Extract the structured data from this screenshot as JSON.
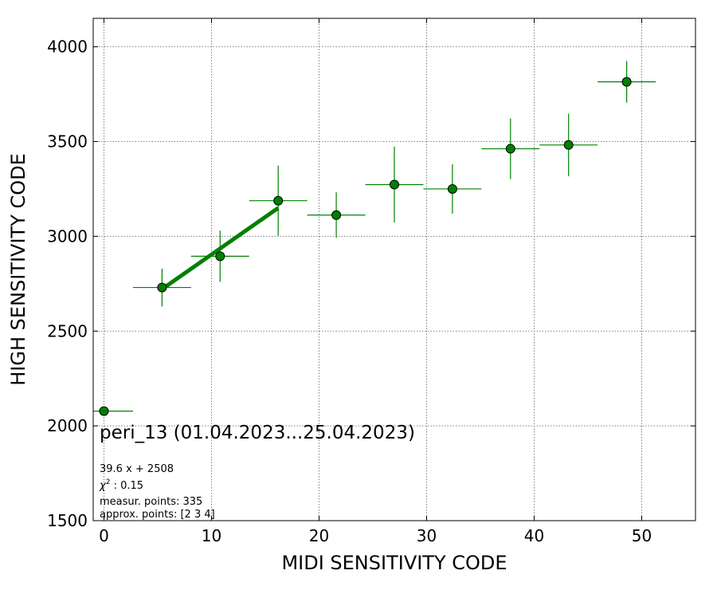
{
  "chart_data": {
    "type": "scatter",
    "xlabel": "MIDI SENSITIVITY CODE",
    "ylabel": "HIGH SENSITIVITY CODE",
    "xlim": [
      -1,
      55
    ],
    "ylim": [
      1500,
      4150
    ],
    "xticks": [
      0,
      10,
      20,
      30,
      40,
      50
    ],
    "yticks": [
      1500,
      2000,
      2500,
      3000,
      3500,
      4000
    ],
    "grid": true,
    "marker_color": "#008000",
    "errorbar_color": "#008000",
    "fit_color": "#008000",
    "points": [
      {
        "x": 0.0,
        "y": 2078,
        "xerr": 2.7,
        "yerr": 0
      },
      {
        "x": 5.4,
        "y": 2730,
        "xerr": 2.7,
        "yerr": 100
      },
      {
        "x": 10.8,
        "y": 2895,
        "xerr": 2.7,
        "yerr": 135
      },
      {
        "x": 16.2,
        "y": 3188,
        "xerr": 2.7,
        "yerr": 185
      },
      {
        "x": 21.6,
        "y": 3112,
        "xerr": 2.7,
        "yerr": 120
      },
      {
        "x": 27.0,
        "y": 3273,
        "xerr": 2.7,
        "yerr": 200
      },
      {
        "x": 32.4,
        "y": 3250,
        "xerr": 2.7,
        "yerr": 130
      },
      {
        "x": 37.8,
        "y": 3462,
        "xerr": 2.7,
        "yerr": 160
      },
      {
        "x": 43.2,
        "y": 3482,
        "xerr": 2.7,
        "yerr": 165
      },
      {
        "x": 48.6,
        "y": 3815,
        "xerr": 2.7,
        "yerr": 110
      }
    ],
    "fit": {
      "slope": 39.6,
      "intercept": 2508,
      "x_range": [
        5.4,
        16.2
      ]
    },
    "annotations": {
      "title": "peri_13 (01.04.2023...25.04.2023)",
      "equation": "39.6 x + 2508",
      "chi2_label": "χ",
      "chi2_sup": "2",
      "chi2_value": " : 0.15",
      "measur_points": "measur. points: 335",
      "approx_points": "approx. points: [2 3 4]"
    }
  }
}
